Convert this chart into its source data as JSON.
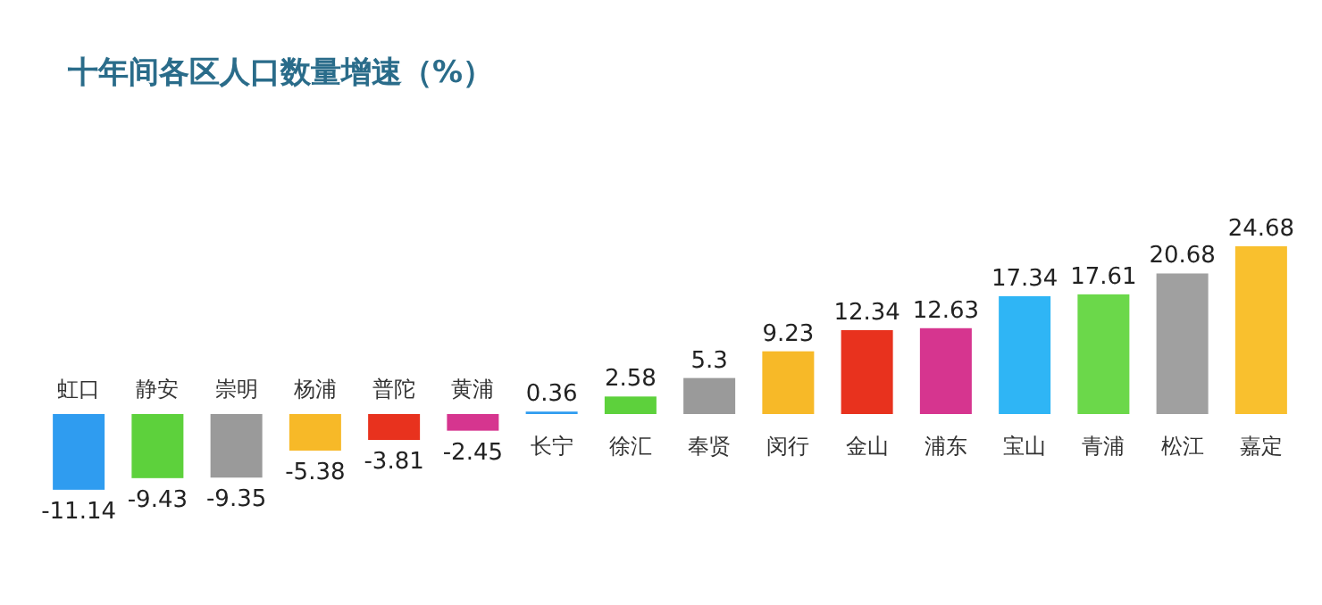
{
  "chart_data": {
    "type": "bar",
    "title": "十年间各区人口数量增速（%）",
    "categories": [
      "虹口",
      "静安",
      "崇明",
      "杨浦",
      "普陀",
      "黄浦",
      "长宁",
      "徐汇",
      "奉贤",
      "闵行",
      "金山",
      "浦东",
      "宝山",
      "青浦",
      "松江",
      "嘉定"
    ],
    "values": [
      -11.14,
      -9.43,
      -9.35,
      -5.38,
      -3.81,
      -2.45,
      0.36,
      2.58,
      5.3,
      9.23,
      12.34,
      12.63,
      17.34,
      17.61,
      20.68,
      24.68
    ],
    "colors": [
      "#2f9cf0",
      "#5dd13c",
      "#9a9a9a",
      "#f7b928",
      "#e8321e",
      "#d6358f",
      "#2f9cf0",
      "#5dd13c",
      "#9a9a9a",
      "#f7b928",
      "#e8321e",
      "#d6358f",
      "#2fb5f5",
      "#6bd84a",
      "#a0a0a0",
      "#f9c02e"
    ],
    "data_labels": true
  }
}
